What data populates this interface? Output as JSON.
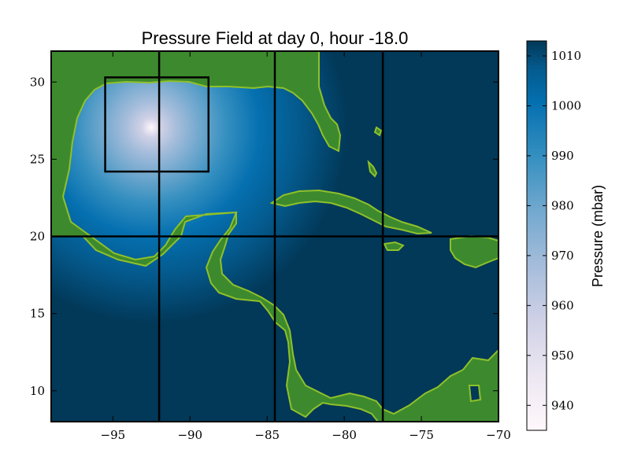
{
  "chart_data": {
    "type": "heatmap",
    "title": "Pressure Field at day 0, hour -18.0",
    "xlabel": "",
    "ylabel": "",
    "xlim": [
      -99,
      -70
    ],
    "ylim": [
      8,
      32
    ],
    "x_ticks": [
      -95,
      -90,
      -85,
      -80,
      -75,
      -70
    ],
    "x_tick_labels": [
      "−95",
      "−90",
      "−85",
      "−80",
      "−75",
      "−70"
    ],
    "y_ticks": [
      10,
      15,
      20,
      25,
      30
    ],
    "y_tick_labels": [
      "10",
      "15",
      "20",
      "25",
      "30"
    ],
    "storm_center": {
      "lon": -92.5,
      "lat": 27.0
    },
    "central_pressure_mbar": 935,
    "ambient_pressure_mbar": 1013,
    "grid_lines": {
      "lon": [
        -92,
        -84.5,
        -77.5
      ],
      "lat": [
        20
      ]
    },
    "subregion_box": {
      "lon": [
        -95.5,
        -88.8
      ],
      "lat": [
        24.2,
        30.3
      ]
    },
    "land_color": "#3d8a2e",
    "coast_color": "#8fc02a",
    "colorbar": {
      "label": "Pressure (mbar)",
      "vmin": 935,
      "vmax": 1013,
      "ticks": [
        940,
        950,
        960,
        970,
        980,
        990,
        1000,
        1010
      ],
      "tick_labels": [
        "940",
        "950",
        "960",
        "970",
        "980",
        "990",
        "1000",
        "1010"
      ],
      "colors": [
        "#fff7fb",
        "#d0d1e6",
        "#a6bddb",
        "#74a9cf",
        "#3690c0",
        "#0570b0",
        "#045a8d",
        "#023858"
      ]
    }
  }
}
